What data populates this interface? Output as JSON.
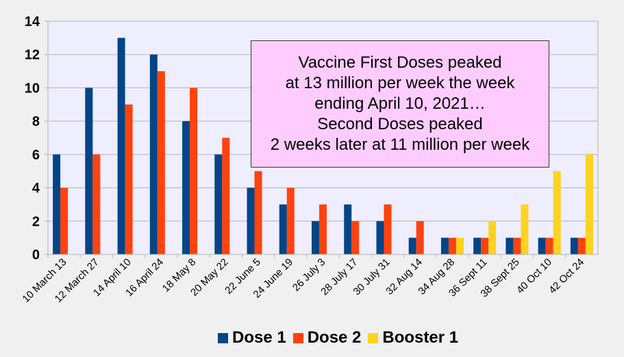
{
  "chart_data": {
    "type": "bar",
    "categories": [
      "10 March 13",
      "12 March 27",
      "14 April 10",
      "16 April 24",
      "18 May 8",
      "20 May 22",
      "22 June 5",
      "24 June 19",
      "26 July 3",
      "28 July 17",
      "30 July 31",
      "32 Aug 14",
      "34 Aug 28",
      "36 Sept 11",
      "38 Sept 25",
      "40 Oct 10",
      "42 Oct 24"
    ],
    "series": [
      {
        "name": "Dose 1",
        "color": "#004586",
        "values": [
          6,
          10,
          13,
          12,
          8,
          6,
          4,
          3,
          2,
          3,
          2,
          1,
          1,
          1,
          1,
          1,
          1
        ]
      },
      {
        "name": "Dose 2",
        "color": "#ff420e",
        "values": [
          4,
          6,
          9,
          11,
          10,
          7,
          5,
          4,
          3,
          2,
          3,
          2,
          1,
          1,
          1,
          1,
          1
        ]
      },
      {
        "name": "Booster 1",
        "color": "#ffd320",
        "values": [
          0,
          0,
          0,
          0,
          0,
          0,
          0,
          0,
          0,
          0,
          0,
          0,
          1,
          2,
          3,
          5,
          6
        ]
      }
    ],
    "ylim": [
      0,
      14
    ],
    "yticks": [
      "0",
      "2",
      "4",
      "6",
      "8",
      "10",
      "12",
      "14"
    ],
    "grid": true,
    "legend_position": "bottom",
    "plot_background": "#eeeeff",
    "annotation": {
      "lines": [
        "Vaccine First Doses peaked",
        "at 13 million per week the week",
        "ending April 10, 2021…",
        "Second Doses peaked",
        "2 weeks later at 11 million per week"
      ],
      "background": "#ffccff"
    }
  }
}
